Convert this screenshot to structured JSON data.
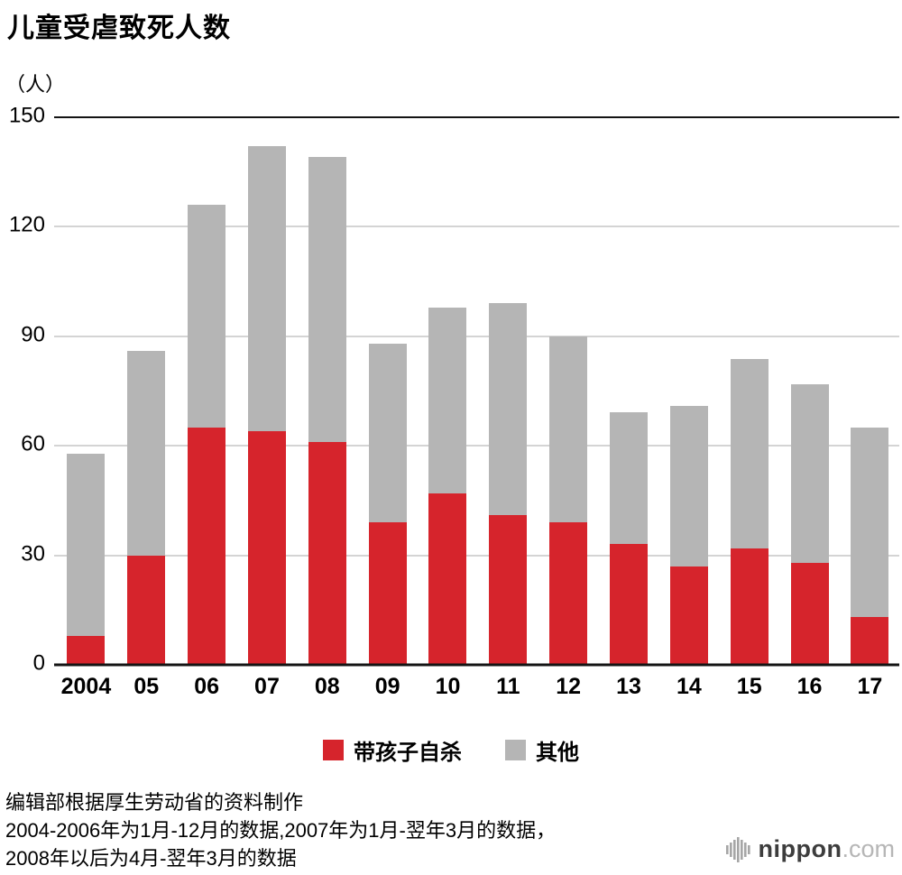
{
  "title": "儿童受虐致死人数",
  "unit_label": "（人）",
  "chart_data": {
    "type": "bar",
    "stacked": true,
    "title": "儿童受虐致死人数",
    "ylabel": "（人）",
    "ylim": [
      0,
      150
    ],
    "yticks": [
      0,
      30,
      60,
      90,
      120,
      150
    ],
    "grid": true,
    "legend_position": "bottom",
    "categories": [
      "2004",
      "05",
      "06",
      "07",
      "08",
      "09",
      "10",
      "11",
      "12",
      "13",
      "14",
      "15",
      "16",
      "17"
    ],
    "series": [
      {
        "name": "带孩子自杀",
        "color": "#d6242c",
        "values": [
          8,
          30,
          65,
          64,
          61,
          39,
          47,
          41,
          39,
          33,
          27,
          32,
          28,
          13
        ]
      },
      {
        "name": "其他",
        "color": "#b5b5b5",
        "values": [
          50,
          56,
          61,
          78,
          78,
          49,
          51,
          58,
          51,
          36,
          44,
          52,
          49,
          52
        ]
      }
    ],
    "totals": [
      58,
      86,
      126,
      142,
      139,
      88,
      98,
      99,
      90,
      69,
      71,
      84,
      77,
      65
    ]
  },
  "legend": {
    "items": [
      {
        "label": "带孩子自杀",
        "color": "#d6242c"
      },
      {
        "label": "其他",
        "color": "#b5b5b5"
      }
    ]
  },
  "footnotes": [
    "编辑部根据厚生劳动省的资料制作",
    "2004-2006年为1月-12月的数据,2007年为1月-翌年3月的数据，",
    "2008年以后为4月-翌年3月的数据"
  ],
  "logo": {
    "brand": "nippon",
    "suffix": ".com"
  }
}
